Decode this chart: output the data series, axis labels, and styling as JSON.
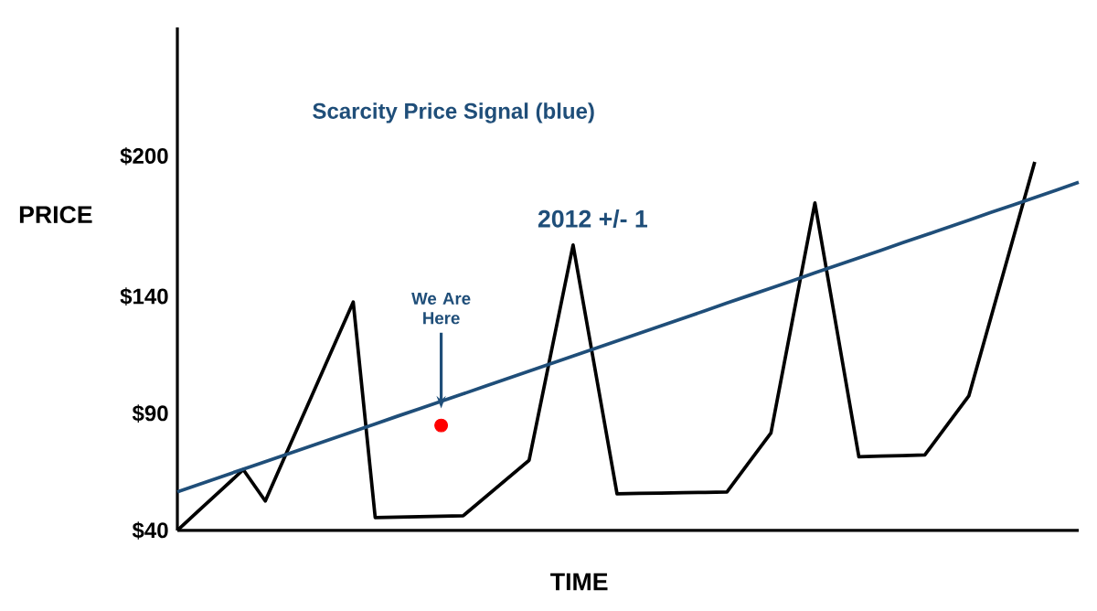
{
  "chart_data": {
    "type": "line",
    "title": "Scarcity Price Signal (blue)",
    "xlabel": "TIME",
    "ylabel": "PRICE",
    "categories": [
      null,
      null,
      null,
      null,
      null,
      null,
      null,
      null,
      null,
      null,
      null,
      null,
      null,
      null,
      null,
      null,
      null,
      null,
      null,
      null,
      null,
      null,
      null,
      null,
      null,
      null,
      null,
      null,
      null,
      null,
      null,
      null,
      null,
      null,
      null,
      null,
      null,
      null,
      null,
      null,
      null,
      null
    ],
    "ylim": [
      40,
      255
    ],
    "yticks": [
      {
        "value": 40,
        "label": "$40"
      },
      {
        "value": 90,
        "label": "$90"
      },
      {
        "value": 140,
        "label": "$140"
      },
      {
        "value": 200,
        "label": "$200"
      }
    ],
    "series": [
      {
        "color": "#000000",
        "values": [
          40,
          48.7,
          57.3,
          66,
          52.6,
          73.9,
          95.1,
          116.4,
          137.6,
          45.5,
          45.7,
          45.9,
          46.1,
          46.3,
          54.2,
          62.1,
          70,
          116,
          162,
          108.9,
          55.7,
          55.9,
          56.0,
          56.2,
          56.3,
          56.5,
          69.1,
          81.7,
          130.9,
          180,
          125.8,
          71.5,
          71.8,
          72.0,
          72.3,
          84.9,
          97.5,
          130.8,
          164.2,
          197.5,
          null,
          null
        ]
      },
      {
        "color": "#1f4e79",
        "values": [
          56.5,
          59.7,
          63.0,
          66.2,
          69.4,
          72.6,
          75.9,
          79.1,
          82.3,
          85.5,
          88.8,
          92.0,
          95.2,
          98.4,
          101.7,
          104.9,
          108.1,
          111.3,
          114.6,
          117.8,
          121.0,
          124.2,
          127.5,
          130.7,
          133.9,
          137.2,
          140.4,
          143.6,
          146.8,
          150.1,
          153.3,
          156.5,
          159.7,
          163.0,
          166.2,
          169.4,
          172.6,
          175.9,
          179.1,
          182.3,
          185.5,
          188.8
        ]
      },
      {
        "type": "scatter",
        "color": "#ff0000",
        "values": [
          null,
          null,
          null,
          null,
          null,
          null,
          null,
          null,
          null,
          null,
          null,
          null,
          84.9,
          null,
          null,
          null,
          null,
          null,
          null,
          null,
          null,
          null,
          null,
          null,
          null,
          null,
          null,
          null,
          null,
          null,
          null,
          null,
          null,
          null,
          null,
          null,
          null,
          null,
          null,
          null,
          null,
          null
        ]
      }
    ],
    "annotations": [
      "We Are Here",
      "2012 +/- 1"
    ]
  }
}
